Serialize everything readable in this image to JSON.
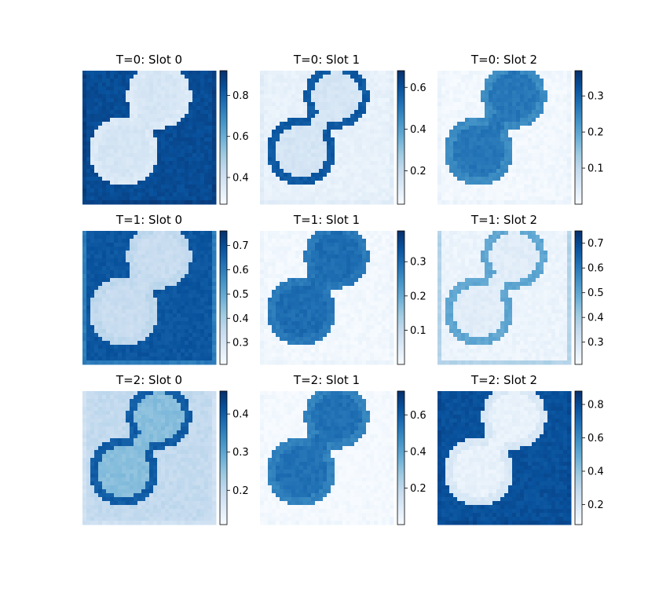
{
  "figure": {
    "colormap": "Blues",
    "colors": {
      "low": "#f7fbff",
      "high": "#08306b",
      "text": "#000000"
    }
  },
  "chart_data": [
    {
      "type": "heatmap",
      "title": "T=0: Slot 0",
      "cbar_range": [
        0.27,
        0.92
      ],
      "cbar_ticks": [
        0.4,
        0.6,
        0.8
      ],
      "regions": {
        "background": 0.85,
        "circle_fill": 0.38,
        "circle_edge": 0.36,
        "outer_border": 0.88
      }
    },
    {
      "type": "heatmap",
      "title": "T=0: Slot 1",
      "cbar_range": [
        0.04,
        0.68
      ],
      "cbar_ticks": [
        0.2,
        0.4,
        0.6
      ],
      "regions": {
        "background": 0.09,
        "circle_fill": 0.15,
        "circle_edge": 0.58,
        "outer_border": 0.11
      }
    },
    {
      "type": "heatmap",
      "title": "T=0: Slot 2",
      "cbar_range": [
        0.0,
        0.37
      ],
      "cbar_ticks": [
        0.1,
        0.2,
        0.3
      ],
      "regions": {
        "background": 0.01,
        "circle_fill": 0.27,
        "circle_edge": 0.24,
        "outer_border": 0.02
      }
    },
    {
      "type": "heatmap",
      "title": "T=1: Slot 0",
      "cbar_range": [
        0.21,
        0.76
      ],
      "cbar_ticks": [
        0.3,
        0.4,
        0.5,
        0.6,
        0.7
      ],
      "regions": {
        "background": 0.68,
        "circle_fill": 0.34,
        "circle_edge": 0.36,
        "outer_border": 0.6
      }
    },
    {
      "type": "heatmap",
      "title": "T=1: Slot 1",
      "cbar_range": [
        0.0,
        0.39
      ],
      "cbar_ticks": [
        0.1,
        0.2,
        0.3
      ],
      "regions": {
        "background": 0.01,
        "circle_fill": 0.3,
        "circle_edge": 0.28,
        "outer_border": 0.02
      }
    },
    {
      "type": "heatmap",
      "title": "T=1: Slot 2",
      "cbar_range": [
        0.21,
        0.75
      ],
      "cbar_ticks": [
        0.3,
        0.4,
        0.5,
        0.6,
        0.7
      ],
      "regions": {
        "background": 0.24,
        "circle_fill": 0.27,
        "circle_edge": 0.5,
        "outer_border": 0.38
      }
    },
    {
      "type": "heatmap",
      "title": "T=2: Slot 0",
      "cbar_range": [
        0.11,
        0.46
      ],
      "cbar_ticks": [
        0.2,
        0.3,
        0.4
      ],
      "regions": {
        "background": 0.2,
        "circle_fill": 0.26,
        "circle_edge": 0.4,
        "outer_border": 0.18
      }
    },
    {
      "type": "heatmap",
      "title": "T=2: Slot 1",
      "cbar_range": [
        0.0,
        0.73
      ],
      "cbar_ticks": [
        0.2,
        0.4,
        0.6
      ],
      "regions": {
        "background": 0.01,
        "circle_fill": 0.55,
        "circle_edge": 0.5,
        "outer_border": 0.02
      }
    },
    {
      "type": "heatmap",
      "title": "T=2: Slot 2",
      "cbar_range": [
        0.08,
        0.88
      ],
      "cbar_ticks": [
        0.2,
        0.4,
        0.6,
        0.8
      ],
      "regions": {
        "background": 0.78,
        "circle_fill": 0.14,
        "circle_edge": 0.2,
        "outer_border": 0.8
      }
    }
  ]
}
